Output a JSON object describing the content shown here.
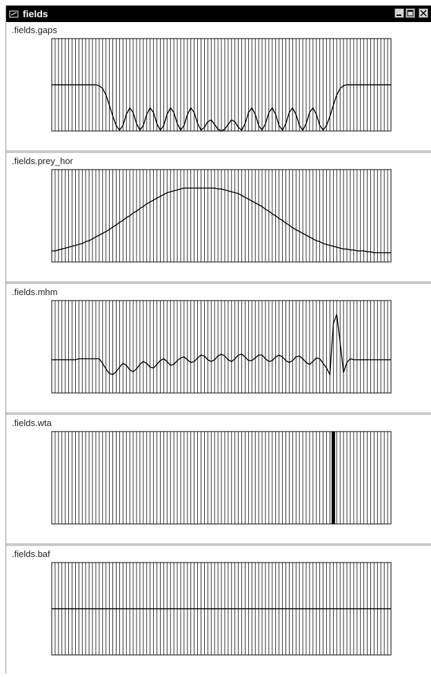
{
  "window": {
    "title": "fields",
    "controls": [
      "minimize",
      "maximize",
      "close"
    ]
  },
  "panels": [
    {
      "id": "gaps",
      "label": ".fields.gaps"
    },
    {
      "id": "prey_hor",
      "label": ".fields.prey_hor"
    },
    {
      "id": "mhm",
      "label": ".fields.mhm"
    },
    {
      "id": "wta",
      "label": ".fields.wta"
    },
    {
      "id": "baf",
      "label": ".fields.baf"
    }
  ],
  "colors": {
    "titlebar": "#000000",
    "divider": "#c9c9c9",
    "grid": "#000000",
    "curve": "#000000"
  },
  "chart_data": [
    {
      "type": "line",
      "title": ".fields.gaps",
      "x": [
        0,
        1,
        2,
        3,
        4,
        5,
        6,
        7,
        8,
        9,
        10,
        11,
        12,
        13,
        14,
        15,
        16,
        17,
        18,
        19,
        20,
        21,
        22,
        23,
        24,
        25,
        26,
        27,
        28,
        29,
        30,
        31,
        32,
        33,
        34,
        35,
        36,
        37,
        38,
        39,
        40,
        41,
        42,
        43,
        44,
        45,
        46,
        47,
        48,
        49,
        50,
        51,
        52,
        53,
        54,
        55,
        56,
        57,
        58,
        59,
        60,
        61,
        62,
        63,
        64,
        65,
        66,
        67,
        68,
        69,
        70,
        71,
        72,
        73,
        74,
        75,
        76,
        77,
        78,
        79,
        80,
        81,
        82,
        83,
        84,
        85,
        86,
        87,
        88,
        89,
        90,
        91,
        92,
        93,
        94,
        95,
        96,
        97,
        98,
        99,
        100
      ],
      "y": [
        0.5,
        0.5,
        0.5,
        0.5,
        0.5,
        0.5,
        0.5,
        0.5,
        0.5,
        0.5,
        0.5,
        0.5,
        0.5,
        0.5,
        0.49,
        0.46,
        0.39,
        0.28,
        0.16,
        0.06,
        0.01,
        0.06,
        0.18,
        0.25,
        0.2,
        0.08,
        0.01,
        0.06,
        0.18,
        0.25,
        0.2,
        0.08,
        0.01,
        0.06,
        0.18,
        0.25,
        0.2,
        0.08,
        0.01,
        0.06,
        0.18,
        0.25,
        0.2,
        0.08,
        0.01,
        0.04,
        0.1,
        0.12,
        0.07,
        0.02,
        0.0,
        0.02,
        0.07,
        0.12,
        0.1,
        0.04,
        0.01,
        0.08,
        0.2,
        0.25,
        0.18,
        0.06,
        0.01,
        0.08,
        0.2,
        0.25,
        0.18,
        0.06,
        0.01,
        0.08,
        0.2,
        0.25,
        0.18,
        0.06,
        0.01,
        0.08,
        0.2,
        0.25,
        0.18,
        0.06,
        0.01,
        0.06,
        0.16,
        0.28,
        0.39,
        0.46,
        0.49,
        0.5,
        0.5,
        0.5,
        0.5,
        0.5,
        0.5,
        0.5,
        0.5,
        0.5,
        0.5,
        0.5,
        0.5,
        0.5,
        0.5
      ],
      "xlim": [
        0,
        100
      ],
      "ylim": [
        0,
        1
      ],
      "grid": true
    },
    {
      "type": "line",
      "title": ".fields.prey_hor",
      "x": [
        0,
        1,
        2,
        3,
        4,
        5,
        6,
        7,
        8,
        9,
        10,
        11,
        12,
        13,
        14,
        15,
        16,
        17,
        18,
        19,
        20,
        21,
        22,
        23,
        24,
        25,
        26,
        27,
        28,
        29,
        30,
        31,
        32,
        33,
        34,
        35,
        36,
        37,
        38,
        39,
        40,
        41,
        42,
        43,
        44,
        45,
        46,
        47,
        48,
        49,
        50,
        51,
        52,
        53,
        54,
        55,
        56,
        57,
        58,
        59,
        60,
        61,
        62,
        63,
        64,
        65,
        66,
        67,
        68,
        69,
        70,
        71,
        72,
        73,
        74,
        75,
        76,
        77,
        78,
        79,
        80,
        81,
        82,
        83,
        84,
        85,
        86,
        87,
        88,
        89,
        90,
        91,
        92,
        93,
        94,
        95,
        96,
        97,
        98,
        99,
        100
      ],
      "y": [
        0.12,
        0.12,
        0.13,
        0.14,
        0.15,
        0.16,
        0.17,
        0.18,
        0.19,
        0.2,
        0.22,
        0.23,
        0.25,
        0.27,
        0.29,
        0.31,
        0.33,
        0.35,
        0.38,
        0.4,
        0.43,
        0.45,
        0.48,
        0.5,
        0.53,
        0.55,
        0.58,
        0.6,
        0.63,
        0.65,
        0.67,
        0.69,
        0.71,
        0.73,
        0.75,
        0.76,
        0.77,
        0.78,
        0.79,
        0.8,
        0.8,
        0.8,
        0.8,
        0.8,
        0.8,
        0.8,
        0.8,
        0.8,
        0.8,
        0.79,
        0.79,
        0.78,
        0.77,
        0.76,
        0.75,
        0.74,
        0.72,
        0.7,
        0.68,
        0.66,
        0.64,
        0.62,
        0.6,
        0.57,
        0.55,
        0.52,
        0.5,
        0.47,
        0.45,
        0.42,
        0.4,
        0.37,
        0.35,
        0.33,
        0.31,
        0.29,
        0.27,
        0.25,
        0.23,
        0.22,
        0.2,
        0.19,
        0.18,
        0.17,
        0.16,
        0.15,
        0.14,
        0.14,
        0.13,
        0.13,
        0.12,
        0.12,
        0.12,
        0.11,
        0.11,
        0.1,
        0.1,
        0.1,
        0.1,
        0.1,
        0.1
      ],
      "xlim": [
        0,
        100
      ],
      "ylim": [
        0,
        1
      ],
      "grid": true
    },
    {
      "type": "line",
      "title": ".fields.mhm",
      "x": [
        0,
        1,
        2,
        3,
        4,
        5,
        6,
        7,
        8,
        9,
        10,
        11,
        12,
        13,
        14,
        15,
        16,
        17,
        18,
        19,
        20,
        21,
        22,
        23,
        24,
        25,
        26,
        27,
        28,
        29,
        30,
        31,
        32,
        33,
        34,
        35,
        36,
        37,
        38,
        39,
        40,
        41,
        42,
        43,
        44,
        45,
        46,
        47,
        48,
        49,
        50,
        51,
        52,
        53,
        54,
        55,
        56,
        57,
        58,
        59,
        60,
        61,
        62,
        63,
        64,
        65,
        66,
        67,
        68,
        69,
        70,
        71,
        72,
        73,
        74,
        75,
        76,
        77,
        78,
        79,
        80,
        81,
        82,
        83,
        84,
        85,
        86,
        87,
        88,
        89,
        90,
        91,
        92,
        93,
        94,
        95,
        96,
        97,
        98,
        99,
        100
      ],
      "y": [
        0.36,
        0.36,
        0.36,
        0.36,
        0.36,
        0.36,
        0.36,
        0.36,
        0.37,
        0.37,
        0.37,
        0.37,
        0.37,
        0.37,
        0.37,
        0.32,
        0.26,
        0.21,
        0.2,
        0.23,
        0.28,
        0.32,
        0.3,
        0.25,
        0.23,
        0.26,
        0.31,
        0.34,
        0.32,
        0.28,
        0.27,
        0.31,
        0.35,
        0.37,
        0.34,
        0.3,
        0.31,
        0.35,
        0.38,
        0.39,
        0.36,
        0.33,
        0.34,
        0.38,
        0.41,
        0.4,
        0.36,
        0.34,
        0.36,
        0.4,
        0.42,
        0.4,
        0.36,
        0.34,
        0.37,
        0.41,
        0.42,
        0.39,
        0.35,
        0.35,
        0.38,
        0.41,
        0.41,
        0.37,
        0.34,
        0.35,
        0.39,
        0.41,
        0.39,
        0.35,
        0.33,
        0.35,
        0.39,
        0.4,
        0.37,
        0.33,
        0.31,
        0.34,
        0.38,
        0.37,
        0.32,
        0.27,
        0.2,
        0.75,
        0.85,
        0.55,
        0.22,
        0.33,
        0.37,
        0.36,
        0.36,
        0.36,
        0.36,
        0.36,
        0.36,
        0.36,
        0.36,
        0.36,
        0.36,
        0.36,
        0.36
      ],
      "xlim": [
        0,
        100
      ],
      "ylim": [
        0,
        1
      ],
      "grid": true
    },
    {
      "type": "bar",
      "title": ".fields.wta",
      "x": [
        83
      ],
      "y": [
        1
      ],
      "xlim": [
        0,
        100
      ],
      "ylim": [
        0,
        1
      ],
      "grid": true
    },
    {
      "type": "line",
      "title": ".fields.baf",
      "x": [
        0,
        100
      ],
      "y": [
        0.5,
        0.5
      ],
      "xlim": [
        0,
        100
      ],
      "ylim": [
        0,
        1
      ],
      "grid": true
    }
  ]
}
